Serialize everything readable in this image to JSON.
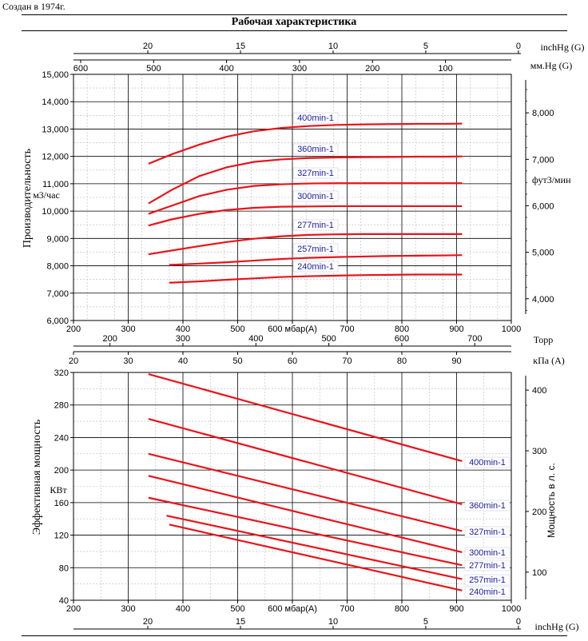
{
  "caption": "Создан в 1974г.",
  "header": {
    "title": "Рабочая характеристика"
  },
  "colors": {
    "curve": "#e8141a",
    "label": "#1a1aa0",
    "grid": "#000000",
    "minor_grid": "#b8b8b8"
  },
  "chart_data": [
    {
      "type": "line",
      "panel": "upper",
      "ylabel": "Производительность",
      "yunit": "м3/час",
      "ylim": [
        6000,
        15000
      ],
      "yticks": [
        "6,000",
        "7,000",
        "8,000",
        "9,000",
        "10,000",
        "11,000",
        "12,000",
        "13,000",
        "14,000",
        "15,000"
      ],
      "xlim": [
        200,
        1000
      ],
      "xticks": [
        "200",
        "300",
        "400",
        "500",
        "600 мбар(A)",
        "700",
        "800",
        "900",
        "1000"
      ],
      "xunit": "мбар(A)",
      "grid": true,
      "right_axis": {
        "label": "фут3/мин",
        "ticks": [
          "4,000",
          "5,000",
          "6,000",
          "7,000",
          "8,000"
        ]
      },
      "top_axis_inchhg": {
        "label": "inchHg (G)",
        "ticks": [
          "20",
          "15",
          "10",
          "5",
          "0"
        ]
      },
      "top_axis_mmhg": {
        "label": "мм.Hg (G)",
        "ticks": [
          "600",
          "500",
          "400",
          "300",
          "200",
          "100"
        ]
      },
      "bottom_axis_torr": {
        "label": "Торр",
        "ticks": [
          "200",
          "300",
          "400",
          "500",
          "600",
          "700"
        ]
      },
      "series": [
        {
          "name": "400min-1",
          "x": [
            337,
            380,
            430,
            480,
            530,
            580,
            630,
            680,
            730,
            780,
            830,
            880,
            910
          ],
          "y": [
            11730,
            12080,
            12430,
            12720,
            12920,
            13040,
            13110,
            13150,
            13170,
            13180,
            13190,
            13190,
            13200
          ]
        },
        {
          "name": "360min-1",
          "x": [
            337,
            380,
            430,
            480,
            530,
            580,
            630,
            680,
            730,
            780,
            830,
            880,
            910
          ],
          "y": [
            10280,
            10780,
            11280,
            11600,
            11800,
            11890,
            11940,
            11960,
            11970,
            11980,
            11990,
            11990,
            12000
          ]
        },
        {
          "name": "327min-1",
          "x": [
            337,
            380,
            430,
            480,
            530,
            580,
            630,
            680,
            730,
            780,
            830,
            880,
            910
          ],
          "y": [
            9900,
            10200,
            10550,
            10780,
            10920,
            10980,
            11010,
            11020,
            11020,
            11020,
            11020,
            11020,
            11020
          ]
        },
        {
          "name": "300min-1",
          "x": [
            337,
            380,
            430,
            480,
            530,
            580,
            630,
            680,
            730,
            780,
            830,
            880,
            910
          ],
          "y": [
            9470,
            9700,
            9900,
            10040,
            10120,
            10160,
            10170,
            10180,
            10180,
            10180,
            10180,
            10180,
            10180
          ]
        },
        {
          "name": "277min-1",
          "x": [
            337,
            380,
            430,
            480,
            530,
            580,
            630,
            680,
            730,
            780,
            830,
            880,
            910
          ],
          "y": [
            8420,
            8560,
            8720,
            8870,
            8990,
            9080,
            9130,
            9150,
            9160,
            9160,
            9160,
            9160,
            9160
          ]
        },
        {
          "name": "257min-1",
          "x": [
            375,
            430,
            480,
            530,
            580,
            630,
            680,
            730,
            780,
            830,
            880,
            910
          ],
          "y": [
            8030,
            8080,
            8130,
            8190,
            8250,
            8290,
            8320,
            8340,
            8360,
            8370,
            8380,
            8390
          ]
        },
        {
          "name": "240min-1",
          "x": [
            375,
            430,
            480,
            530,
            580,
            630,
            680,
            730,
            780,
            830,
            880,
            910
          ],
          "y": [
            7380,
            7430,
            7490,
            7540,
            7590,
            7620,
            7640,
            7660,
            7670,
            7680,
            7680,
            7680
          ]
        }
      ]
    },
    {
      "type": "line",
      "panel": "lower",
      "ylabel": "Эффективная мощность",
      "yunit": "КВт",
      "ylim": [
        40,
        320
      ],
      "yticks": [
        "40",
        "80",
        "120",
        "160",
        "200",
        "240",
        "280",
        "320"
      ],
      "xlim": [
        200,
        1000
      ],
      "xticks": [
        "200",
        "300",
        "400",
        "500",
        "600 мбар(A)",
        "700",
        "800",
        "900",
        "1000"
      ],
      "xunit": "мбар(A)",
      "grid": true,
      "right_axis": {
        "label": "Мощность в л. с.",
        "ticks": [
          "100",
          "200",
          "300",
          "400"
        ]
      },
      "top_axis_kpa": {
        "label": "кПа (A)",
        "ticks": [
          "20",
          "30",
          "40",
          "50",
          "60",
          "70",
          "80",
          "90"
        ]
      },
      "bottom_axis_inchhg": {
        "label": "inchHg (G)",
        "ticks": [
          "20",
          "15",
          "10",
          "5",
          "0"
        ]
      },
      "series": [
        {
          "name": "400min-1",
          "x": [
            337,
            910
          ],
          "y": [
            318,
            211
          ]
        },
        {
          "name": "360min-1",
          "x": [
            337,
            910
          ],
          "y": [
            263,
            158
          ]
        },
        {
          "name": "327min-1",
          "x": [
            337,
            910
          ],
          "y": [
            220,
            125
          ]
        },
        {
          "name": "300min-1",
          "x": [
            337,
            910
          ],
          "y": [
            193,
            99
          ]
        },
        {
          "name": "277min-1",
          "x": [
            337,
            910
          ],
          "y": [
            166,
            83
          ]
        },
        {
          "name": "257min-1",
          "x": [
            370,
            910
          ],
          "y": [
            144,
            66
          ]
        },
        {
          "name": "240min-1",
          "x": [
            375,
            910
          ],
          "y": [
            133,
            52
          ]
        }
      ]
    }
  ]
}
